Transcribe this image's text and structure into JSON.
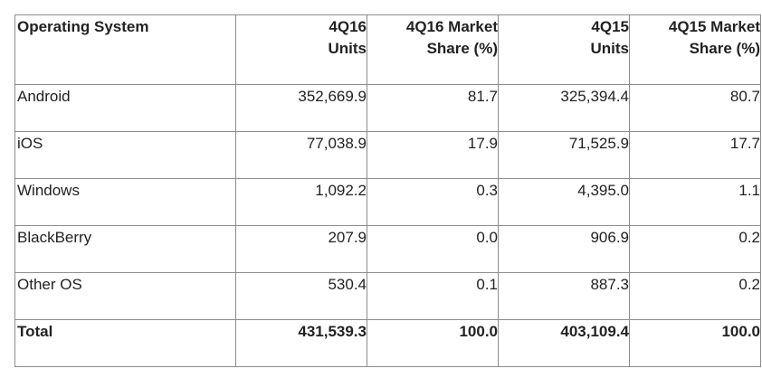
{
  "chart_data": {
    "type": "table",
    "columns": [
      [
        "Operating System"
      ],
      [
        "4Q16",
        "Units"
      ],
      [
        "4Q16 Market",
        "Share (%)"
      ],
      [
        "4Q15",
        "Units"
      ],
      [
        "4Q15 Market",
        "Share (%)"
      ]
    ],
    "rows": [
      [
        "Android",
        "352,669.9",
        "81.7",
        "325,394.4",
        "80.7"
      ],
      [
        "iOS",
        "77,038.9",
        "17.9",
        "71,525.9",
        "17.7"
      ],
      [
        "Windows",
        "1,092.2",
        "0.3",
        "4,395.0",
        "1.1"
      ],
      [
        "BlackBerry",
        "207.9",
        "0.0",
        "906.9",
        "0.2"
      ],
      [
        "Other OS",
        "530.4",
        "0.1",
        "887.3",
        "0.2"
      ]
    ],
    "total": [
      "Total",
      "431,539.3",
      "100.0",
      "403,109.4",
      "100.0"
    ]
  }
}
